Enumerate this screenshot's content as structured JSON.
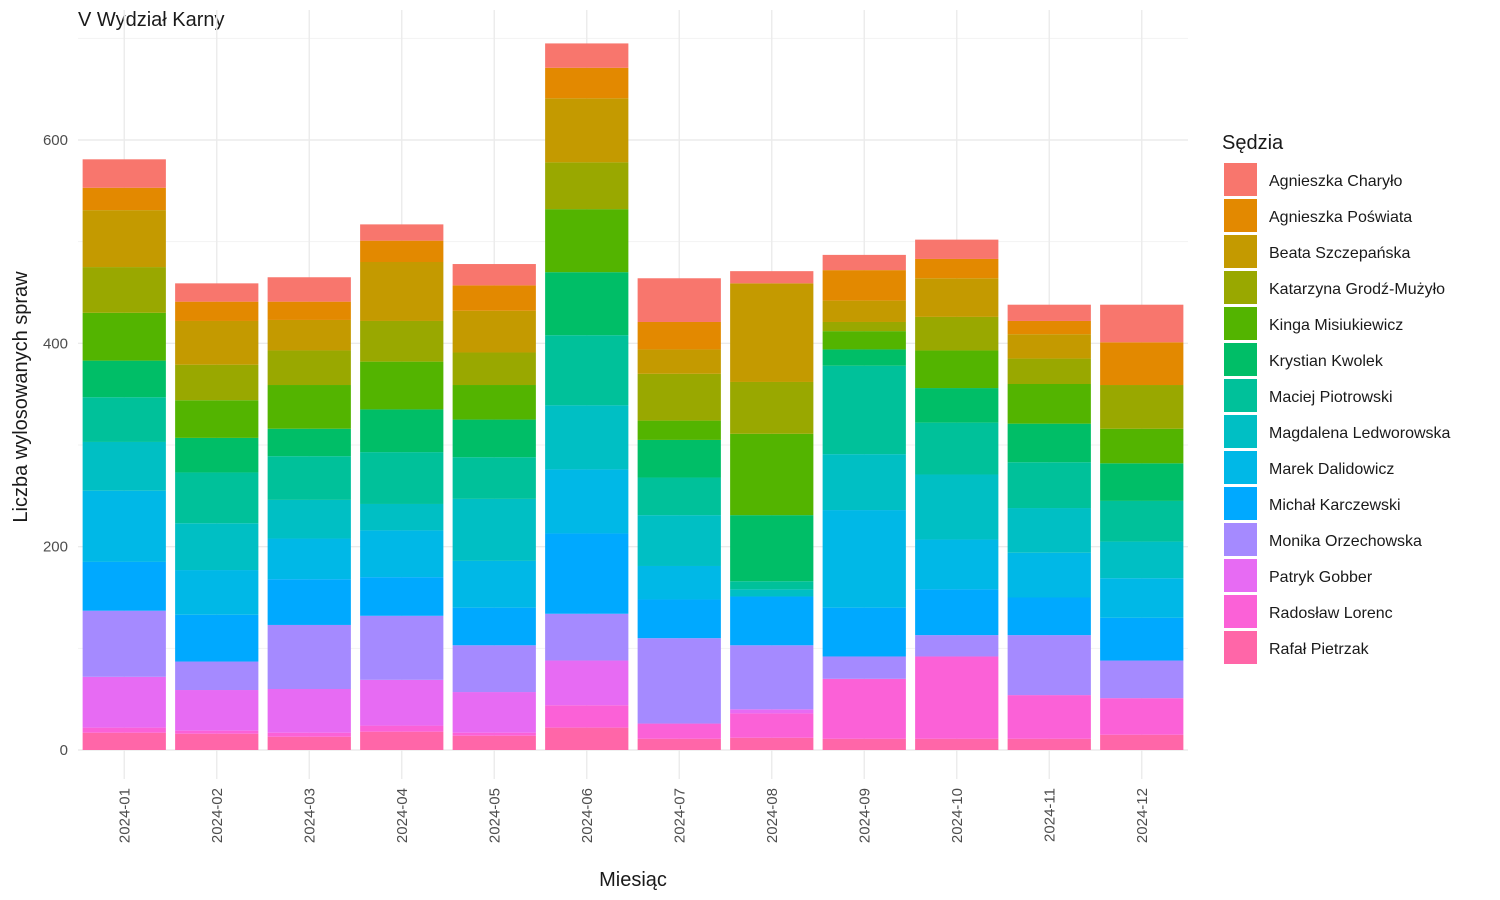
{
  "chart_data": {
    "type": "bar",
    "stacked": true,
    "title": "V Wydział Karny",
    "xlabel": "Miesiąc",
    "ylabel": "Liczba wylosowanych spraw",
    "ylim": [
      0,
      720
    ],
    "yticks": [
      0,
      200,
      400,
      600
    ],
    "grid": true,
    "legend_title": "Sędzia",
    "legend_position": "right",
    "categories": [
      "2024-01",
      "2024-02",
      "2024-03",
      "2024-04",
      "2024-05",
      "2024-06",
      "2024-07",
      "2024-08",
      "2024-09",
      "2024-10",
      "2024-11",
      "2024-12"
    ],
    "series": [
      {
        "name": "Rafał Pietrzak",
        "color": "#FF66A8",
        "values": [
          17,
          16,
          13,
          18,
          14,
          22,
          11,
          12,
          11,
          11,
          11,
          15
        ]
      },
      {
        "name": "Radosław Lorenc",
        "color": "#FB61D7",
        "values": [
          5,
          3,
          4,
          6,
          3,
          22,
          15,
          24,
          59,
          81,
          43,
          36
        ]
      },
      {
        "name": "Patryk Gobber",
        "color": "#E76BF3",
        "values": [
          50,
          40,
          43,
          45,
          40,
          44,
          0,
          4,
          0,
          0,
          0,
          0
        ]
      },
      {
        "name": "Monika Orzechowska",
        "color": "#A58AFF",
        "values": [
          65,
          28,
          63,
          63,
          46,
          46,
          84,
          63,
          22,
          21,
          59,
          37
        ]
      },
      {
        "name": "Michał Karczewski",
        "color": "#00A9FF",
        "values": [
          48,
          46,
          45,
          38,
          37,
          79,
          38,
          48,
          48,
          45,
          37,
          42
        ]
      },
      {
        "name": "Marek Dalidowicz",
        "color": "#00B8E7",
        "values": [
          70,
          44,
          40,
          46,
          46,
          63,
          33,
          0,
          96,
          49,
          44,
          39
        ]
      },
      {
        "name": "Magdalena Ledworowska",
        "color": "#00BFC4",
        "values": [
          48,
          46,
          38,
          26,
          61,
          63,
          50,
          7,
          55,
          64,
          44,
          36
        ]
      },
      {
        "name": "Maciej Piotrowski",
        "color": "#00C19A",
        "values": [
          44,
          50,
          43,
          51,
          41,
          69,
          37,
          8,
          87,
          51,
          45,
          40
        ]
      },
      {
        "name": "Krystian Kwolek",
        "color": "#00BE67",
        "values": [
          36,
          34,
          27,
          42,
          37,
          62,
          37,
          65,
          16,
          34,
          38,
          37
        ]
      },
      {
        "name": "Kinga Misiukiewicz",
        "color": "#53B400",
        "values": [
          47,
          37,
          43,
          47,
          34,
          62,
          19,
          80,
          18,
          37,
          39,
          34
        ]
      },
      {
        "name": "Katarzyna Grodź-Mużyło",
        "color": "#99A800",
        "values": [
          45,
          35,
          34,
          40,
          32,
          46,
          46,
          51,
          9,
          33,
          25,
          43
        ]
      },
      {
        "name": "Beata Szczepańska",
        "color": "#C49A00",
        "values": [
          56,
          43,
          30,
          58,
          41,
          63,
          24,
          97,
          21,
          38,
          24,
          0
        ]
      },
      {
        "name": "Agnieszka Poświata",
        "color": "#E38900",
        "values": [
          22,
          19,
          18,
          21,
          25,
          30,
          27,
          0,
          30,
          19,
          13,
          42
        ]
      },
      {
        "name": "Agnieszka Charyło",
        "color": "#F8766D",
        "values": [
          28,
          18,
          24,
          16,
          21,
          24,
          43,
          12,
          15,
          19,
          16,
          37
        ]
      }
    ],
    "legend_order": [
      "Agnieszka Charyło",
      "Agnieszka Poświata",
      "Beata Szczepańska",
      "Katarzyna Grodź-Mużyło",
      "Kinga Misiukiewicz",
      "Krystian Kwolek",
      "Maciej Piotrowski",
      "Magdalena Ledworowska",
      "Marek Dalidowicz",
      "Michał Karczewski",
      "Monika Orzechowska",
      "Patryk Gobber",
      "Radosław Lorenc",
      "Rafał Pietrzak"
    ]
  }
}
